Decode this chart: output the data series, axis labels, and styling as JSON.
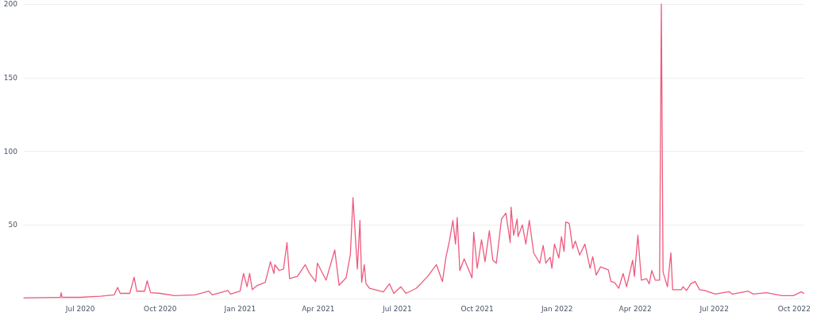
{
  "chart_data": {
    "type": "line",
    "color": "#ee5a7e",
    "grid": "y",
    "marker": "none",
    "line_style": "solid",
    "xlim": [
      "2020-04-27",
      "2022-10-12"
    ],
    "xticks": [
      {
        "value": "2020-07-01",
        "label": "Jul 2020"
      },
      {
        "value": "2020-10-01",
        "label": "Oct 2020"
      },
      {
        "value": "2021-01-01",
        "label": "Jan 2021"
      },
      {
        "value": "2021-04-01",
        "label": "Apr 2021"
      },
      {
        "value": "2021-07-01",
        "label": "Jul 2021"
      },
      {
        "value": "2021-10-01",
        "label": "Oct 2021"
      },
      {
        "value": "2022-01-01",
        "label": "Jan 2022"
      },
      {
        "value": "2022-04-01",
        "label": "Apr 2022"
      },
      {
        "value": "2022-07-01",
        "label": "Jul 2022"
      },
      {
        "value": "2022-10-01",
        "label": "Oct 2022"
      }
    ],
    "ylim": [
      0,
      200
    ],
    "yticks": [
      {
        "value": 0,
        "label": null
      },
      50,
      100,
      150,
      200
    ],
    "x": [
      "2020-04-27",
      "2020-05-30",
      "2020-06-08",
      "2020-06-09",
      "2020-06-10",
      "2020-07-01",
      "2020-07-24",
      "2020-08-09",
      "2020-08-13",
      "2020-08-16",
      "2020-08-27",
      "2020-09-01",
      "2020-09-04",
      "2020-09-13",
      "2020-09-16",
      "2020-09-20",
      "2020-10-01",
      "2020-10-18",
      "2020-11-10",
      "2020-11-26",
      "2020-11-30",
      "2020-12-18",
      "2020-12-21",
      "2021-01-01",
      "2021-01-05",
      "2021-01-09",
      "2021-01-12",
      "2021-01-15",
      "2021-01-21",
      "2021-01-30",
      "2021-02-05",
      "2021-02-09",
      "2021-02-10",
      "2021-02-15",
      "2021-02-20",
      "2021-02-24",
      "2021-02-27",
      "2021-03-08",
      "2021-03-17",
      "2021-03-22",
      "2021-03-29",
      "2021-03-31",
      "2021-04-10",
      "2021-04-20",
      "2021-04-25",
      "2021-05-03",
      "2021-05-08",
      "2021-05-11",
      "2021-05-16",
      "2021-05-19",
      "2021-05-21",
      "2021-05-24",
      "2021-05-26",
      "2021-05-30",
      "2021-06-15",
      "2021-06-22",
      "2021-06-27",
      "2021-07-05",
      "2021-07-11",
      "2021-07-23",
      "2021-08-05",
      "2021-08-15",
      "2021-08-22",
      "2021-08-26",
      "2021-08-30",
      "2021-09-03",
      "2021-09-06",
      "2021-09-08",
      "2021-09-11",
      "2021-09-16",
      "2021-09-25",
      "2021-09-27",
      "2021-10-01",
      "2021-10-06",
      "2021-10-10",
      "2021-10-15",
      "2021-10-19",
      "2021-10-23",
      "2021-10-29",
      "2021-11-03",
      "2021-11-08",
      "2021-11-09",
      "2021-11-12",
      "2021-11-16",
      "2021-11-17",
      "2021-11-22",
      "2021-11-26",
      "2021-11-30",
      "2021-12-05",
      "2021-12-12",
      "2021-12-16",
      "2021-12-19",
      "2021-12-24",
      "2021-12-26",
      "2021-12-29",
      "2022-01-03",
      "2022-01-06",
      "2022-01-09",
      "2022-01-11",
      "2022-01-15",
      "2022-01-19",
      "2022-01-22",
      "2022-01-27",
      "2022-02-02",
      "2022-02-08",
      "2022-02-11",
      "2022-02-15",
      "2022-02-20",
      "2022-03-01",
      "2022-03-04",
      "2022-03-08",
      "2022-03-13",
      "2022-03-18",
      "2022-03-22",
      "2022-03-29",
      "2022-03-31",
      "2022-04-04",
      "2022-04-08",
      "2022-04-14",
      "2022-04-17",
      "2022-04-20",
      "2022-04-24",
      "2022-04-29",
      "2022-05-01",
      "2022-05-03",
      "2022-05-08",
      "2022-05-12",
      "2022-05-14",
      "2022-05-24",
      "2022-05-26",
      "2022-05-30",
      "2022-06-04",
      "2022-06-09",
      "2022-06-14",
      "2022-06-20",
      "2022-07-02",
      "2022-07-18",
      "2022-07-22",
      "2022-08-09",
      "2022-08-15",
      "2022-08-30",
      "2022-09-17",
      "2022-09-30",
      "2022-10-09",
      "2022-10-12"
    ],
    "values": [
      0.5,
      0.7,
      0.8,
      4,
      0.8,
      0.8,
      1.5,
      2.5,
      7.5,
      3.5,
      3.5,
      14.5,
      5,
      5,
      12,
      4,
      3.5,
      2,
      2.5,
      5,
      2.5,
      5.5,
      3,
      5,
      17,
      8,
      17,
      6,
      9,
      11,
      25,
      17,
      23,
      19,
      20,
      38,
      13.5,
      15,
      23,
      17,
      11.5,
      24,
      12.5,
      33,
      9,
      14,
      30,
      68.5,
      20,
      53,
      11,
      23,
      10,
      7,
      4.5,
      10,
      3.5,
      8,
      3.5,
      7,
      15,
      23,
      11.5,
      28,
      39,
      53,
      37,
      55,
      19,
      27,
      14,
      45,
      20.5,
      40,
      25,
      46,
      26,
      24,
      54,
      58,
      38,
      62,
      43,
      54,
      42,
      50,
      37,
      53,
      31,
      24,
      36,
      24,
      28,
      20.5,
      37,
      27.5,
      42,
      32,
      52,
      51,
      34,
      39,
      29.5,
      37,
      20.5,
      28.5,
      16,
      21.5,
      19.5,
      11.5,
      11,
      7,
      17,
      8,
      26,
      15,
      43,
      12.5,
      13.5,
      10,
      19,
      12.5,
      12.5,
      200,
      18,
      8,
      31,
      6,
      6,
      8,
      5.5,
      10,
      11.5,
      6,
      5.5,
      3,
      4.7,
      3,
      5,
      3,
      4,
      2,
      2,
      4.5,
      3.5
    ]
  }
}
